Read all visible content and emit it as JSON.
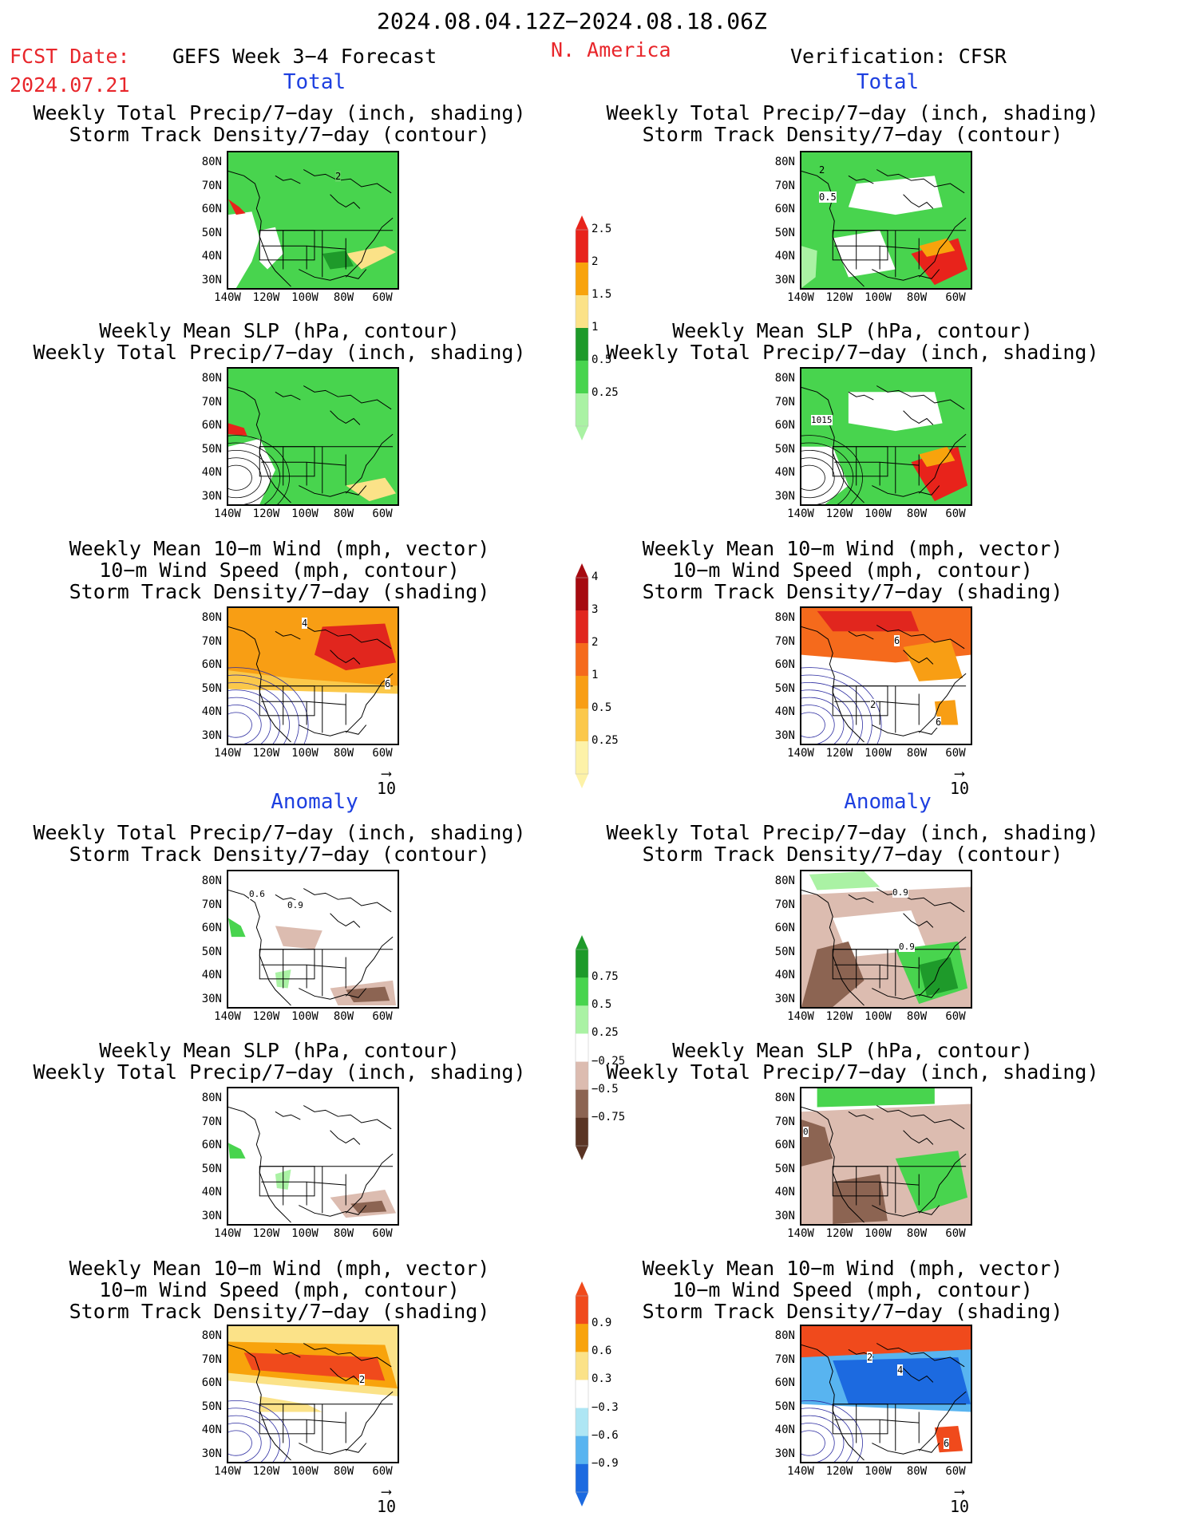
{
  "header": {
    "period": "2024.08.04.12Z−2024.08.18.06Z",
    "fcst_label": "FCST Date:",
    "fcst_date": "2024.07.21",
    "forecast_title": "GEFS Week 3−4 Forecast",
    "region": "N. America",
    "verification": "Verification: CFSR"
  },
  "sections": {
    "total": "Total",
    "anomaly": "Anomaly"
  },
  "panel_titles": {
    "precip_storm": "Weekly Total Precip/7−day (inch, shading)\nStorm Track Density/7−day (contour)",
    "slp_precip": "Weekly Mean SLP (hPa, contour)\nWeekly Total Precip/7−day (inch, shading)",
    "wind_storm": "Weekly Mean 10−m Wind (mph, vector)\n10−m Wind Speed (mph, contour)\nStorm Track Density/7−day (shading)"
  },
  "axes": {
    "lat_labels": [
      "80N",
      "70N",
      "60N",
      "50N",
      "40N",
      "30N"
    ],
    "lon_labels": [
      "140W",
      "120W",
      "100W",
      "80W",
      "60W"
    ]
  },
  "contour_labels": {
    "precip_storm_total_left": "2",
    "precip_storm_total_right_a": "2",
    "precip_storm_total_right_b": "0.5",
    "slp_total_right": "1015",
    "wind_total_left_a": "4",
    "wind_total_left_b": "6",
    "wind_total_right_a": "6",
    "wind_total_right_b": "2",
    "wind_total_right_c": "6",
    "anom_precip_left_a": "0.6",
    "anom_precip_left_b": "0.9",
    "anom_precip_right_a": "0.9",
    "anom_precip_right_b": "0.9",
    "anom_slp_right": "0",
    "anom_wind_left": "2",
    "anom_wind_right_a": "2",
    "anom_wind_right_b": "4",
    "anom_wind_right_c": "6"
  },
  "vector_ref": "10",
  "colorbars": {
    "precip_total": {
      "labels": [
        "2.5",
        "2",
        "1.5",
        "1",
        "0.5",
        "0.25"
      ],
      "colors": [
        "#e8231b",
        "#f8a30c",
        "#fbe288",
        "#1e9a2a",
        "#48d44e",
        "#aaf2a4"
      ]
    },
    "storm_total": {
      "labels": [
        "4",
        "3",
        "2",
        "1",
        "0.5",
        "0.25"
      ],
      "colors": [
        "#a60a10",
        "#e1261e",
        "#f56a1c",
        "#f89e14",
        "#fbc84a",
        "#fdf2a8"
      ]
    },
    "precip_anom": {
      "labels": [
        "0.75",
        "0.5",
        "0.25",
        "−0.25",
        "−0.5",
        "−0.75"
      ],
      "colors": [
        "#1e9a2a",
        "#48d44e",
        "#aaf2a4",
        "#ffffff",
        "#dcbcb0",
        "#8c6452",
        "#5a3424"
      ]
    },
    "storm_anom": {
      "labels": [
        "0.9",
        "0.6",
        "0.3",
        "−0.3",
        "−0.6",
        "−0.9"
      ],
      "colors": [
        "#f04a1c",
        "#f8a30c",
        "#fbe288",
        "#ffffff",
        "#aee6f4",
        "#58b4f0",
        "#1c6ae0"
      ]
    }
  }
}
